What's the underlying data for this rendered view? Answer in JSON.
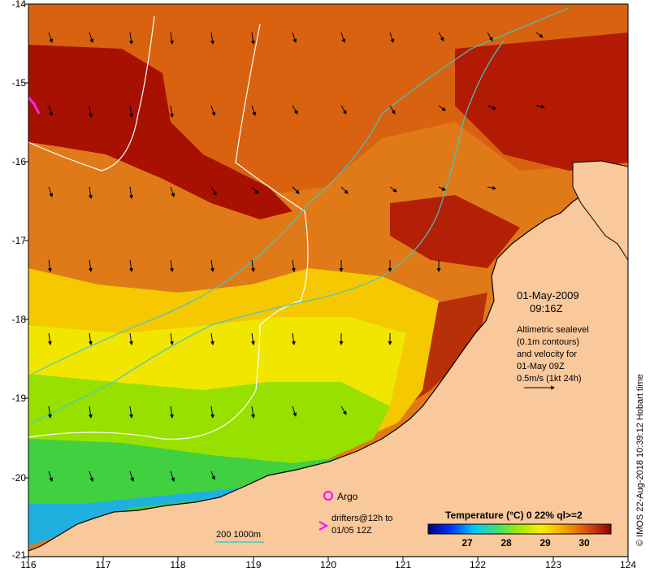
{
  "map": {
    "lon_range": [
      116,
      124
    ],
    "lat_range": [
      -21,
      -14
    ],
    "x_ticks": [
      "116",
      "117",
      "118",
      "119",
      "120",
      "121",
      "122",
      "123",
      "124"
    ],
    "y_ticks": [
      "-14",
      "-15",
      "-16",
      "-17",
      "-18",
      "-19",
      "-20",
      "-21"
    ],
    "colors": {
      "land": "#f9c89b",
      "warm": "#c0392b",
      "deep": "#a81002",
      "mid": "#e07a18",
      "cool": "#98e000",
      "cold": "#2a8cff"
    }
  },
  "annotation": {
    "date": "01-May-2009",
    "time": "09:16Z",
    "alt_lines": [
      "Altimetric sealevel",
      "(0.1m contours)",
      "and velocity for",
      "01-May 09Z",
      "0.5m/s (1kt 24h)"
    ]
  },
  "legend": {
    "argo_label": "Argo",
    "drifters_line1": "drifters@12h to",
    "drifters_line2": "01/05 12Z",
    "depth_label": "200  1000m"
  },
  "colorbar": {
    "title": "Temperature (°C) 0 22% ql>=2",
    "ticks": [
      "27",
      "28",
      "29",
      "30"
    ],
    "range": [
      26,
      30.7
    ]
  },
  "credit": "© IMOS 22-Aug-2018 10:39:12 Hobart time"
}
